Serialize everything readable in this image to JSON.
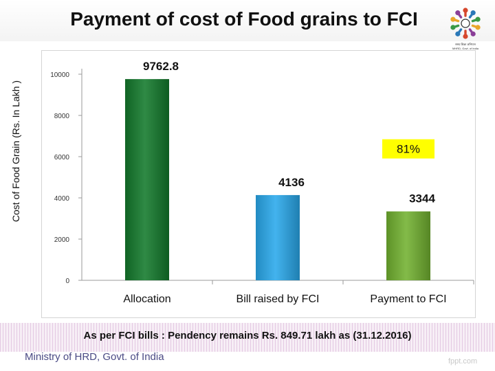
{
  "title": "Payment of cost of Food grains to FCI",
  "logo": {
    "line1": "समग्र शिक्षा अभियान",
    "line2": "MHRD, Govt. of India",
    "colors": [
      "#d6472c",
      "#2b79b8",
      "#3a9a46",
      "#e9a62b",
      "#8a3f98",
      "#2a2a2a"
    ]
  },
  "footer": {
    "note": "As per FCI bills : Pendency remains Rs. 849.71  lakh as (31.12.2016)",
    "ministry": "Ministry of HRD, Govt. of India",
    "watermark": "fppt.com"
  },
  "chart_data": {
    "type": "bar",
    "ylabel": "Cost of Food Grain (Rs. In Lakh )",
    "categories": [
      "Allocation",
      "Bill raised by FCI",
      "Payment to FCI"
    ],
    "values": [
      9762.8,
      4136,
      3344
    ],
    "value_labels": [
      "9762.8",
      "4136",
      "3344"
    ],
    "bar_colors": [
      "#137a2c",
      "#29a9ec",
      "#72b230"
    ],
    "yticks": [
      0,
      2000,
      4000,
      6000,
      8000,
      10000
    ],
    "ylim": [
      0,
      10000
    ],
    "grid": false,
    "annotation": {
      "text": "81%",
      "category": "Payment to FCI",
      "background": "#ffff00"
    }
  }
}
